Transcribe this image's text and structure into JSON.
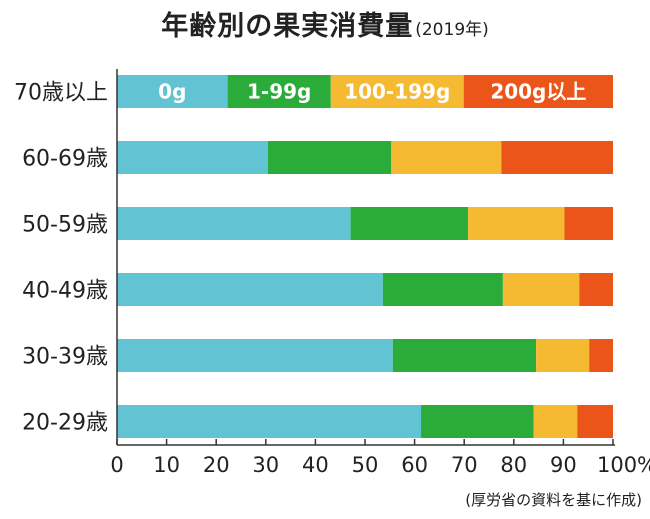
{
  "title": "年齢別の果実消費量",
  "subtitle": "(2019年)",
  "source": "(厚労省の資料を基に作成)",
  "chart_data": {
    "type": "bar",
    "orientation": "horizontal",
    "stacked": true,
    "categories": [
      "70歳以上",
      "60-69歳",
      "50-59歳",
      "40-49歳",
      "30-39歳",
      "20-29歳"
    ],
    "series": [
      {
        "name": "0g",
        "color": "#62c3d3",
        "values": [
          22.3,
          30.4,
          47.1,
          53.6,
          55.6,
          61.3
        ]
      },
      {
        "name": "1-99g",
        "color": "#2bab3a",
        "values": [
          20.8,
          24.9,
          23.7,
          24.2,
          28.9,
          22.7
        ]
      },
      {
        "name": "100-199g",
        "color": "#f6b932",
        "values": [
          26.8,
          22.2,
          19.4,
          15.4,
          10.7,
          8.8
        ]
      },
      {
        "name": "200g以上",
        "color": "#ec5519",
        "values": [
          30.1,
          22.5,
          9.8,
          6.8,
          4.8,
          7.2
        ]
      }
    ],
    "xlim": [
      0,
      100
    ],
    "x_ticks": [
      "0",
      "10",
      "20",
      "30",
      "40",
      "50",
      "60",
      "70",
      "80",
      "90",
      "100%"
    ],
    "legend": "inside-first-bar",
    "grid": false
  }
}
